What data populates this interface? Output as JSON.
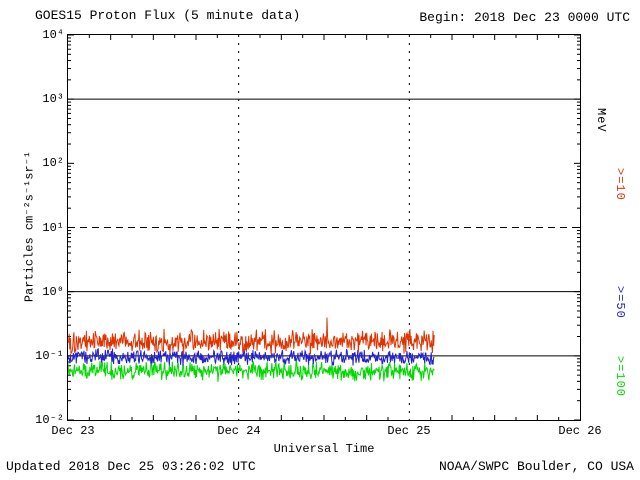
{
  "header": {
    "title": "GOES15 Proton Flux (5 minute data)",
    "begin_label": "Begin: 2018 Dec 23 0000 UTC"
  },
  "axes": {
    "y_label": "Particles cm⁻²s⁻¹sr⁻¹",
    "x_label": "Universal Time",
    "y_ticks": [
      "10⁴",
      "10³",
      "10²",
      "10¹",
      "10⁰",
      "10⁻¹",
      "10⁻²"
    ],
    "x_ticks": [
      "Dec 23",
      "Dec 24",
      "Dec 25",
      "Dec 26"
    ]
  },
  "right_labels": {
    "unit": "MeV",
    "series": [
      {
        "label": ">=10",
        "color": "#e03300"
      },
      {
        "label": ">=50",
        "color": "#2222cc"
      },
      {
        "label": ">=100",
        "color": "#00d800"
      }
    ]
  },
  "footer": {
    "updated": "Updated 2018 Dec 25 03:26:02 UTC",
    "source": "NOAA/SWPC Boulder, CO USA"
  },
  "chart_data": {
    "type": "line",
    "title": "GOES15 Proton Flux (5 minute data)",
    "xlabel": "Universal Time",
    "ylabel": "Particles cm⁻²s⁻¹sr⁻¹",
    "x_axis": {
      "start": "2018 Dec 23 0000 UTC",
      "end": "2018 Dec 26 0000 UTC",
      "tick_labels": [
        "Dec 23",
        "Dec 24",
        "Dec 25",
        "Dec 26"
      ],
      "span_days": 3
    },
    "y_axis": {
      "scale": "log",
      "min": 0.01,
      "max": 10000,
      "unit": "Particles cm^-2 s^-1 sr^-1"
    },
    "grid": {
      "solid_hlines_at": [
        1000,
        1,
        0.1
      ],
      "dashed_hline_at": 10,
      "dashed_vlines_at_days": [
        1,
        2
      ]
    },
    "legend_position": "right",
    "cadence_minutes": 5,
    "data_end_days": 2.145,
    "data_end_label": "2018 Dec 25 03:26:02 UTC",
    "series": [
      {
        "name": ">=10 MeV",
        "color": "#e03300",
        "approx_mean_flux": 0.18,
        "approx_range": [
          0.1,
          0.45
        ],
        "log_center": -0.78,
        "log_amp": 0.22,
        "spike_prob": 0.03,
        "spike_log": 0.22,
        "seed": 101
      },
      {
        "name": ">=50 MeV",
        "color": "#2222cc",
        "approx_mean_flux": 0.1,
        "approx_range": [
          0.06,
          0.16
        ],
        "log_center": -1.02,
        "log_amp": 0.14,
        "spike_prob": 0.0,
        "spike_log": 0,
        "seed": 202
      },
      {
        "name": ">=100 MeV",
        "color": "#00d800",
        "approx_mean_flux": 0.055,
        "approx_range": [
          0.03,
          0.09
        ],
        "log_center": -1.24,
        "log_amp": 0.17,
        "spike_prob": 0.0,
        "spike_log": 0,
        "seed": 303
      }
    ]
  }
}
